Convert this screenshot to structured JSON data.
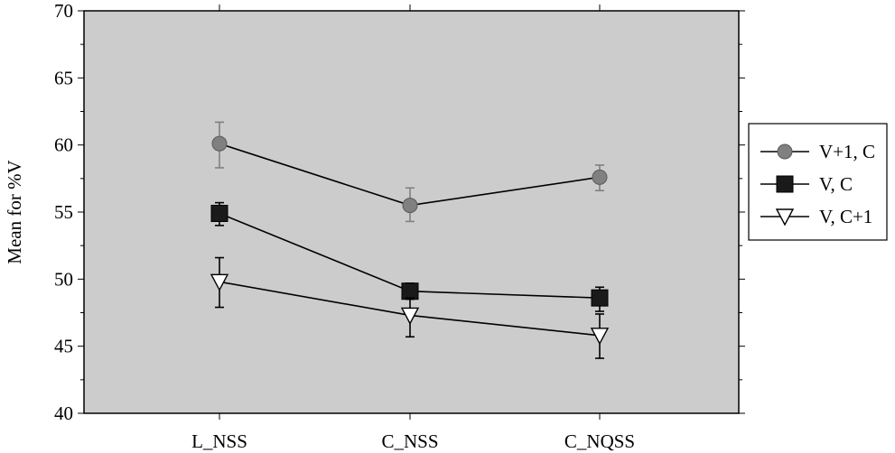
{
  "chart_data": {
    "type": "line",
    "categories": [
      "L_NSS",
      "C_NSS",
      "C_NQSS"
    ],
    "ylabel": "Mean for %V",
    "xlabel": "",
    "ylim": [
      40,
      70
    ],
    "yticks": [
      40,
      45,
      50,
      55,
      60,
      65,
      70
    ],
    "y_minor_step": 2.5,
    "grid": false,
    "background": "#cccccc",
    "legend_position": "right",
    "series": [
      {
        "name": "V+1, C",
        "marker": "circle",
        "marker_color": "#808080",
        "errorbar_color": "#808080",
        "values": [
          60.1,
          55.5,
          57.6
        ],
        "err_low": [
          58.3,
          54.3,
          56.6
        ],
        "err_high": [
          61.7,
          56.8,
          58.5
        ]
      },
      {
        "name": "V, C",
        "marker": "square",
        "marker_color": "#1a1a1a",
        "errorbar_color": "#000000",
        "values": [
          54.9,
          49.1,
          48.6
        ],
        "err_low": [
          54.0,
          48.5,
          47.6
        ],
        "err_high": [
          55.7,
          49.7,
          49.4
        ]
      },
      {
        "name": "V, C+1",
        "marker": "triangle-down",
        "marker_color": "#ffffff",
        "errorbar_color": "#000000",
        "values": [
          49.8,
          47.3,
          45.8
        ],
        "err_low": [
          47.9,
          45.7,
          44.1
        ],
        "err_high": [
          51.6,
          48.6,
          47.4
        ]
      }
    ]
  }
}
